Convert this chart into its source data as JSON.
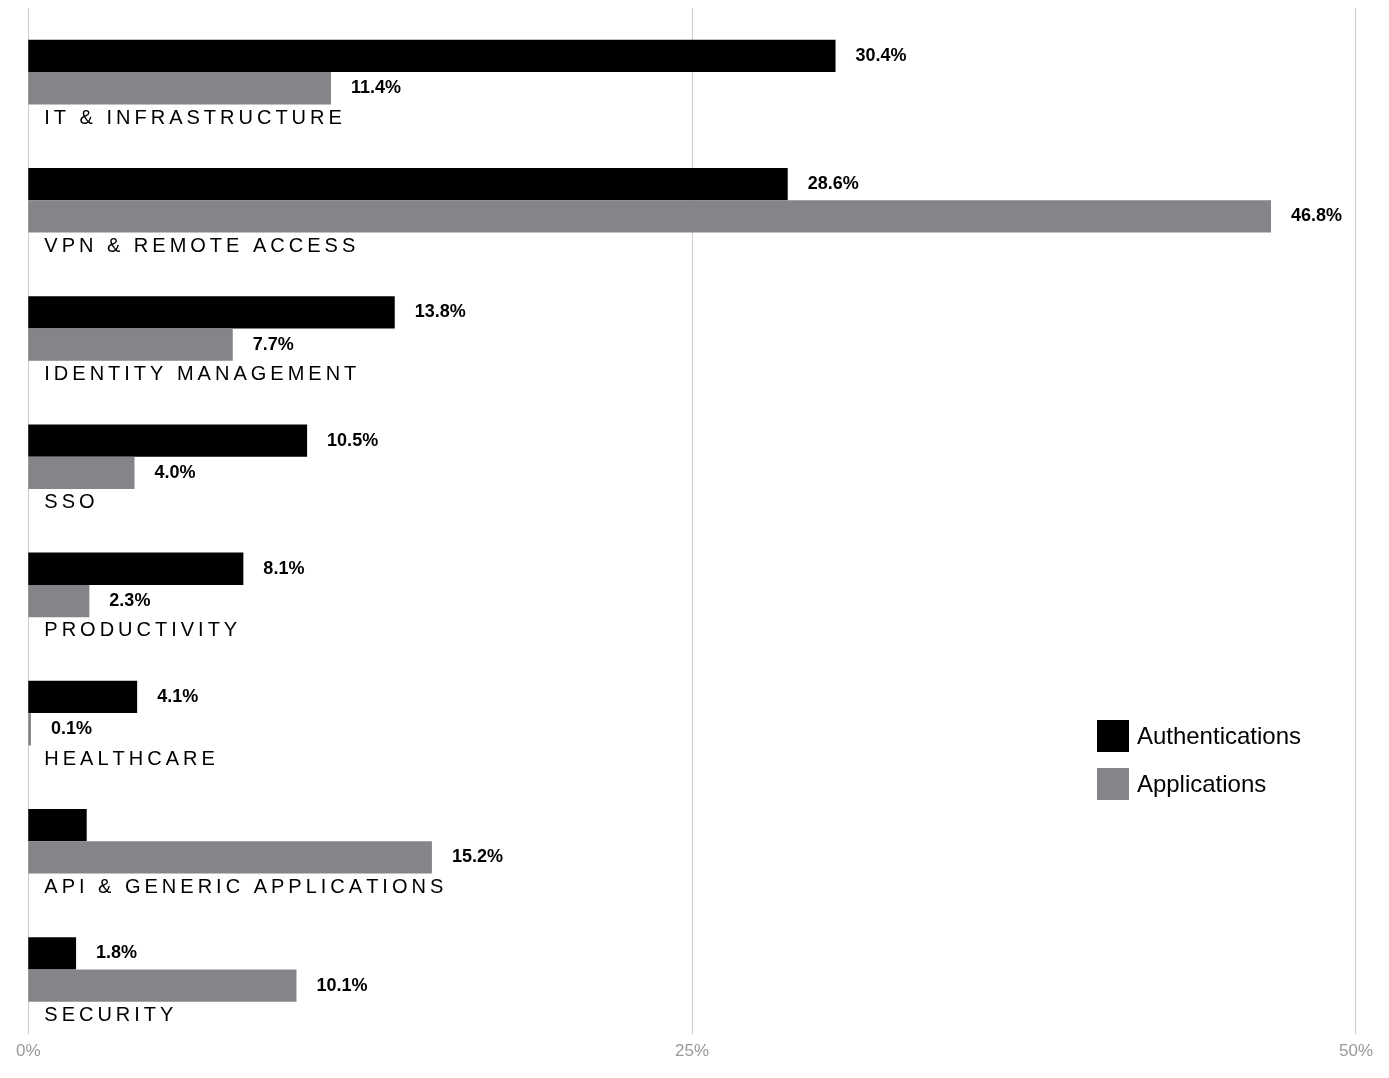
{
  "chart_data": {
    "type": "bar",
    "orientation": "horizontal",
    "categories": [
      "IT & INFRASTRUCTURE",
      "VPN & REMOTE ACCESS",
      "IDENTITY MANAGEMENT",
      "SSO",
      "PRODUCTIVITY",
      "HEALTHCARE",
      "API & GENERIC APPLICATIONS",
      "SECURITY"
    ],
    "series": [
      {
        "name": "Authentications",
        "color": "#000000",
        "values": [
          30.4,
          28.6,
          13.8,
          10.5,
          8.1,
          4.1,
          2.2,
          1.8
        ],
        "value_labels": [
          "30.4%",
          "28.6%",
          "13.8%",
          "10.5%",
          "8.1%",
          "4.1%",
          null,
          "1.8%"
        ]
      },
      {
        "name": "Applications",
        "color": "#848589",
        "values": [
          11.4,
          46.8,
          7.7,
          4.0,
          2.3,
          0.1,
          15.2,
          10.1
        ],
        "value_labels": [
          "11.4%",
          "46.8%",
          "7.7%",
          "4.0%",
          "2.3%",
          "0.1%",
          "15.2%",
          "10.1%"
        ]
      }
    ],
    "xlim": [
      0,
      50
    ],
    "xticks": [
      {
        "value": 0,
        "label": "0%"
      },
      {
        "value": 25,
        "label": "25%"
      },
      {
        "value": 50,
        "label": "50%"
      }
    ],
    "grid": "x",
    "legend": "right"
  }
}
